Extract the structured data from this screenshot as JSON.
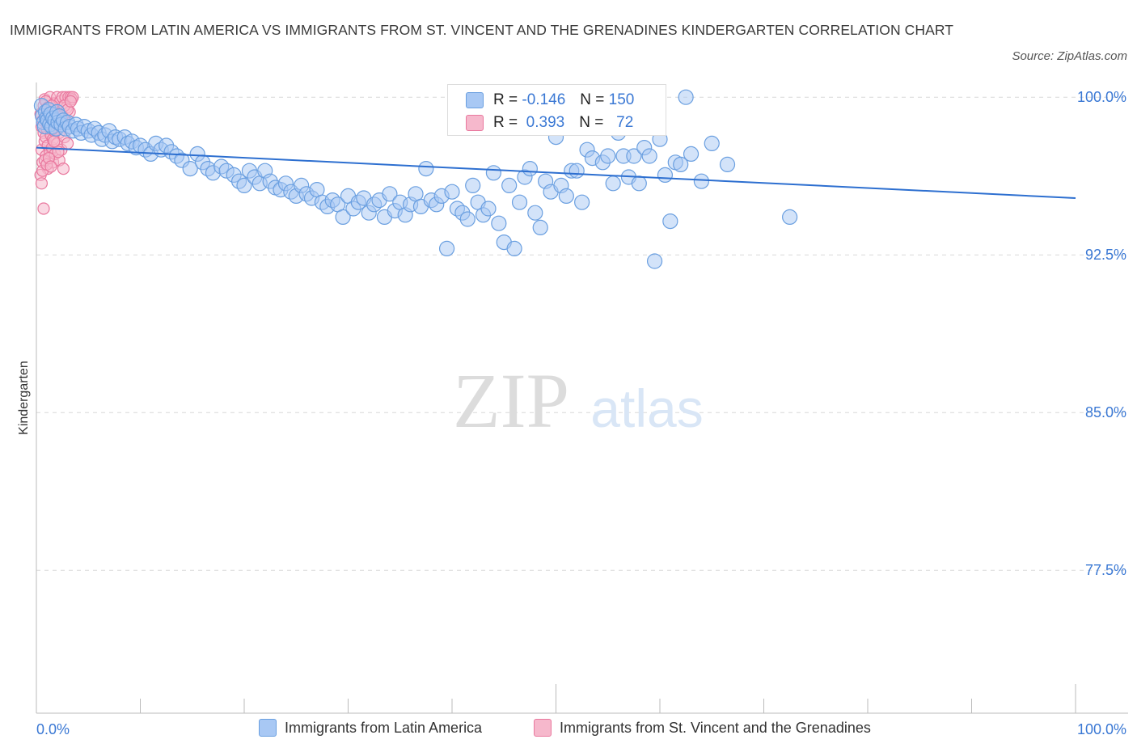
{
  "title": "IMMIGRANTS FROM LATIN AMERICA VS IMMIGRANTS FROM ST. VINCENT AND THE GRENADINES KINDERGARTEN CORRELATION CHART",
  "source": "Source: ZipAtlas.com",
  "watermark": {
    "zip": "ZIP",
    "atlas": "atlas"
  },
  "colors": {
    "blue_fill": "#a8c8f4",
    "blue_stroke": "#6a9fe0",
    "blue_line": "#2d6fd0",
    "pink_fill": "#f6b8cc",
    "pink_stroke": "#e9789e",
    "tick_label": "#3a78d4",
    "grid": "#d9d9d9"
  },
  "legend": {
    "blue_label": "Immigrants from Latin America",
    "pink_label": "Immigrants from St. Vincent and the Grenadines"
  },
  "stats": {
    "blue": {
      "r_label": "R =",
      "r": "-0.146",
      "n_label": "N =",
      "n": "150"
    },
    "pink": {
      "r_label": "R =",
      "r": "0.393",
      "n_label": "N =",
      "n": "72"
    }
  },
  "chart_data": {
    "type": "scatter",
    "title": "IMMIGRANTS FROM LATIN AMERICA VS IMMIGRANTS FROM ST. VINCENT AND THE GRENADINES KINDERGARTEN CORRELATION CHART",
    "xlabel": "",
    "ylabel": "Kindergarten",
    "xlim": [
      0,
      100
    ],
    "ylim": [
      70.7,
      100.7
    ],
    "x_tick_labels": [
      "0.0%",
      "100.0%"
    ],
    "y_ticks": [
      100.0,
      92.5,
      85.0,
      77.5
    ],
    "y_tick_labels": [
      "100.0%",
      "92.5%",
      "85.0%",
      "77.5%"
    ],
    "grid": true,
    "series": [
      {
        "name": "Immigrants from Latin America",
        "color": "#a8c8f4",
        "trend": {
          "x": [
            0,
            100
          ],
          "y": [
            97.6,
            95.2
          ]
        },
        "points": [
          [
            0.5,
            99.6
          ],
          [
            0.6,
            99.1
          ],
          [
            0.7,
            98.8
          ],
          [
            0.8,
            98.6
          ],
          [
            0.9,
            99.3
          ],
          [
            1.0,
            99.0
          ],
          [
            1.1,
            98.9
          ],
          [
            1.2,
            99.4
          ],
          [
            1.3,
            98.7
          ],
          [
            1.4,
            99.2
          ],
          [
            1.5,
            98.6
          ],
          [
            1.6,
            99.0
          ],
          [
            1.8,
            98.9
          ],
          [
            1.9,
            98.5
          ],
          [
            2.0,
            99.3
          ],
          [
            2.1,
            98.8
          ],
          [
            2.2,
            99.1
          ],
          [
            2.4,
            98.7
          ],
          [
            2.6,
            98.9
          ],
          [
            2.8,
            98.5
          ],
          [
            3.0,
            98.8
          ],
          [
            3.2,
            98.6
          ],
          [
            3.5,
            98.4
          ],
          [
            3.8,
            98.7
          ],
          [
            4.0,
            98.5
          ],
          [
            4.3,
            98.3
          ],
          [
            4.6,
            98.6
          ],
          [
            5.0,
            98.4
          ],
          [
            5.3,
            98.2
          ],
          [
            5.6,
            98.5
          ],
          [
            6.0,
            98.3
          ],
          [
            6.3,
            98.0
          ],
          [
            6.6,
            98.2
          ],
          [
            7.0,
            98.4
          ],
          [
            7.3,
            97.9
          ],
          [
            7.6,
            98.1
          ],
          [
            8.0,
            98.0
          ],
          [
            8.5,
            98.1
          ],
          [
            8.8,
            97.8
          ],
          [
            9.2,
            97.9
          ],
          [
            9.6,
            97.6
          ],
          [
            10.0,
            97.7
          ],
          [
            10.5,
            97.5
          ],
          [
            11.0,
            97.3
          ],
          [
            11.5,
            97.8
          ],
          [
            12.0,
            97.5
          ],
          [
            12.5,
            97.7
          ],
          [
            13.0,
            97.4
          ],
          [
            13.5,
            97.2
          ],
          [
            14.0,
            97.0
          ],
          [
            14.8,
            96.6
          ],
          [
            15.5,
            97.3
          ],
          [
            16.0,
            96.9
          ],
          [
            16.5,
            96.6
          ],
          [
            17.0,
            96.4
          ],
          [
            17.8,
            96.7
          ],
          [
            18.3,
            96.5
          ],
          [
            19.0,
            96.3
          ],
          [
            19.5,
            96.0
          ],
          [
            20.0,
            95.8
          ],
          [
            20.5,
            96.5
          ],
          [
            21.0,
            96.2
          ],
          [
            21.5,
            95.9
          ],
          [
            22.0,
            96.5
          ],
          [
            22.5,
            96.0
          ],
          [
            23.0,
            95.7
          ],
          [
            23.5,
            95.6
          ],
          [
            24.0,
            95.9
          ],
          [
            24.5,
            95.5
          ],
          [
            25.0,
            95.3
          ],
          [
            25.5,
            95.8
          ],
          [
            26.0,
            95.4
          ],
          [
            26.5,
            95.2
          ],
          [
            27.0,
            95.6
          ],
          [
            27.5,
            95.0
          ],
          [
            28.0,
            94.8
          ],
          [
            28.5,
            95.1
          ],
          [
            29.0,
            94.9
          ],
          [
            29.5,
            94.3
          ],
          [
            30.0,
            95.3
          ],
          [
            30.5,
            94.7
          ],
          [
            31.0,
            95.0
          ],
          [
            31.5,
            95.2
          ],
          [
            32.0,
            94.5
          ],
          [
            32.5,
            94.9
          ],
          [
            33.0,
            95.1
          ],
          [
            33.5,
            94.3
          ],
          [
            34.0,
            95.4
          ],
          [
            34.5,
            94.6
          ],
          [
            35.0,
            95.0
          ],
          [
            35.5,
            94.4
          ],
          [
            36.0,
            94.9
          ],
          [
            36.5,
            95.4
          ],
          [
            37.0,
            94.8
          ],
          [
            37.5,
            96.6
          ],
          [
            38.0,
            95.1
          ],
          [
            38.5,
            94.9
          ],
          [
            39.0,
            95.3
          ],
          [
            39.5,
            92.8
          ],
          [
            40.0,
            95.5
          ],
          [
            40.5,
            94.7
          ],
          [
            41.0,
            94.5
          ],
          [
            41.5,
            94.2
          ],
          [
            42.0,
            95.8
          ],
          [
            42.5,
            95.0
          ],
          [
            43.0,
            94.4
          ],
          [
            43.5,
            94.7
          ],
          [
            44.0,
            96.4
          ],
          [
            44.5,
            94.0
          ],
          [
            45.0,
            93.1
          ],
          [
            45.5,
            95.8
          ],
          [
            46.0,
            92.8
          ],
          [
            46.5,
            95.0
          ],
          [
            47.0,
            96.2
          ],
          [
            47.5,
            96.6
          ],
          [
            48.0,
            94.5
          ],
          [
            48.5,
            93.8
          ],
          [
            49.0,
            96.0
          ],
          [
            49.5,
            95.5
          ],
          [
            50.0,
            98.1
          ],
          [
            50.5,
            95.8
          ],
          [
            51.0,
            95.3
          ],
          [
            51.5,
            96.5
          ],
          [
            52.0,
            96.5
          ],
          [
            52.5,
            95.0
          ],
          [
            53.0,
            97.5
          ],
          [
            53.5,
            97.1
          ],
          [
            54.0,
            98.7
          ],
          [
            54.5,
            96.9
          ],
          [
            55.0,
            97.2
          ],
          [
            55.5,
            95.9
          ],
          [
            56.0,
            98.3
          ],
          [
            56.5,
            97.2
          ],
          [
            57.0,
            96.2
          ],
          [
            57.5,
            97.2
          ],
          [
            58.0,
            95.9
          ],
          [
            58.5,
            97.6
          ],
          [
            59.0,
            97.2
          ],
          [
            59.5,
            92.2
          ],
          [
            60.0,
            98.0
          ],
          [
            60.5,
            96.3
          ],
          [
            61.0,
            94.1
          ],
          [
            61.5,
            96.9
          ],
          [
            62.0,
            96.8
          ],
          [
            62.5,
            100.0
          ],
          [
            63.0,
            97.3
          ],
          [
            64.0,
            96.0
          ],
          [
            65.0,
            97.8
          ],
          [
            66.5,
            96.8
          ],
          [
            72.5,
            94.3
          ]
        ]
      },
      {
        "name": "Immigrants from St. Vincent and the Grenadines",
        "color": "#f6b8cc",
        "points": [
          [
            0.4,
            99.2
          ],
          [
            0.5,
            98.6
          ],
          [
            0.5,
            97.5
          ],
          [
            0.6,
            98.9
          ],
          [
            0.6,
            96.9
          ],
          [
            0.7,
            99.6
          ],
          [
            0.7,
            98.3
          ],
          [
            0.8,
            97.9
          ],
          [
            0.8,
            99.9
          ],
          [
            0.9,
            98.1
          ],
          [
            0.9,
            97.2
          ],
          [
            1.0,
            99.4
          ],
          [
            1.0,
            98.5
          ],
          [
            1.1,
            97.7
          ],
          [
            1.1,
            96.6
          ],
          [
            1.2,
            99.1
          ],
          [
            1.2,
            98.7
          ],
          [
            1.3,
            97.4
          ],
          [
            1.3,
            100.0
          ],
          [
            1.4,
            98.9
          ],
          [
            1.4,
            98.2
          ],
          [
            1.5,
            97.6
          ],
          [
            1.5,
            99.3
          ],
          [
            1.6,
            98.0
          ],
          [
            1.6,
            96.9
          ],
          [
            1.7,
            99.7
          ],
          [
            1.7,
            98.4
          ],
          [
            1.8,
            97.3
          ],
          [
            1.9,
            99.0
          ],
          [
            1.9,
            98.6
          ],
          [
            2.0,
            100.0
          ],
          [
            2.0,
            97.8
          ],
          [
            2.1,
            99.2
          ],
          [
            2.2,
            98.3
          ],
          [
            2.2,
            97.0
          ],
          [
            2.3,
            99.8
          ],
          [
            2.4,
            98.8
          ],
          [
            2.4,
            97.5
          ],
          [
            2.5,
            100.0
          ],
          [
            2.6,
            99.0
          ],
          [
            2.6,
            96.6
          ],
          [
            2.7,
            98.1
          ],
          [
            2.8,
            100.0
          ],
          [
            2.9,
            99.5
          ],
          [
            3.0,
            97.8
          ],
          [
            3.1,
            100.0
          ],
          [
            3.2,
            99.3
          ],
          [
            3.3,
            100.0
          ],
          [
            3.4,
            99.9
          ],
          [
            3.5,
            100.0
          ],
          [
            0.4,
            96.3
          ],
          [
            0.5,
            95.9
          ],
          [
            0.6,
            96.5
          ],
          [
            0.7,
            94.7
          ],
          [
            0.8,
            97.0
          ],
          [
            0.9,
            99.8
          ],
          [
            1.0,
            96.8
          ],
          [
            1.1,
            99.5
          ],
          [
            1.2,
            97.1
          ],
          [
            1.3,
            98.8
          ],
          [
            1.4,
            96.7
          ],
          [
            1.5,
            99.6
          ],
          [
            1.6,
            98.5
          ],
          [
            1.7,
            97.9
          ],
          [
            1.8,
            99.2
          ],
          [
            2.0,
            98.9
          ],
          [
            2.1,
            97.4
          ],
          [
            2.3,
            98.6
          ],
          [
            2.5,
            99.1
          ],
          [
            2.7,
            99.6
          ],
          [
            3.0,
            99.4
          ],
          [
            3.3,
            99.8
          ]
        ]
      }
    ]
  }
}
